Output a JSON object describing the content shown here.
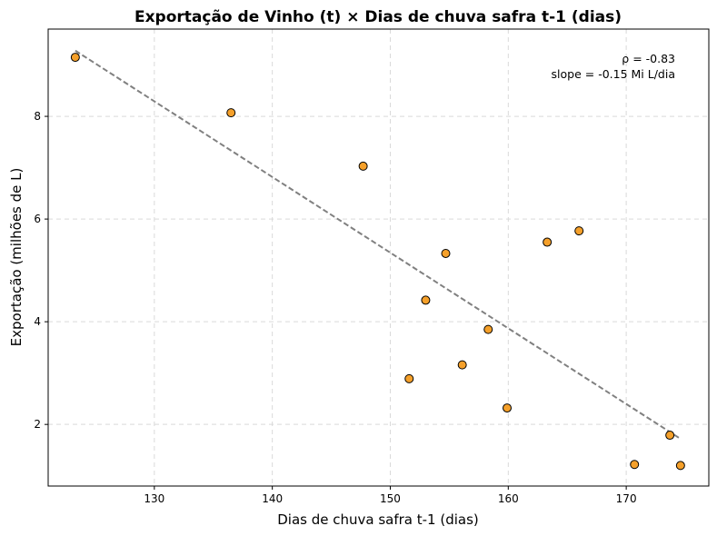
{
  "chart_data": {
    "type": "scatter",
    "title": "Exportação de Vinho (t) × Dias de chuva safra t-1 (dias)",
    "xlabel": "Dias de chuva safra t-1 (dias)",
    "ylabel": "Exportação (milhões de L)",
    "xlim": [
      121,
      177
    ],
    "ylim": [
      0.8,
      9.7
    ],
    "xticks": [
      130,
      140,
      150,
      160,
      170
    ],
    "yticks": [
      2,
      4,
      6,
      8
    ],
    "grid": true,
    "point_color": "#f5a02a",
    "point_edge_color": "#000000",
    "trend_color": "#808080",
    "points": [
      {
        "x": 123.3,
        "y": 9.15
      },
      {
        "x": 136.5,
        "y": 8.07
      },
      {
        "x": 147.7,
        "y": 7.03
      },
      {
        "x": 151.6,
        "y": 2.89
      },
      {
        "x": 153.0,
        "y": 4.42
      },
      {
        "x": 154.7,
        "y": 5.33
      },
      {
        "x": 156.1,
        "y": 3.16
      },
      {
        "x": 158.3,
        "y": 3.85
      },
      {
        "x": 159.9,
        "y": 2.32
      },
      {
        "x": 163.3,
        "y": 5.55
      },
      {
        "x": 166.0,
        "y": 5.77
      },
      {
        "x": 170.7,
        "y": 1.22
      },
      {
        "x": 173.7,
        "y": 1.79
      },
      {
        "x": 174.6,
        "y": 1.2
      }
    ],
    "trendline": {
      "x": [
        123.3,
        174.6
      ],
      "y": [
        9.28,
        1.72
      ]
    },
    "annotations": [
      "ρ = -0.83",
      "slope = -0.15 Mi L/dia"
    ]
  }
}
